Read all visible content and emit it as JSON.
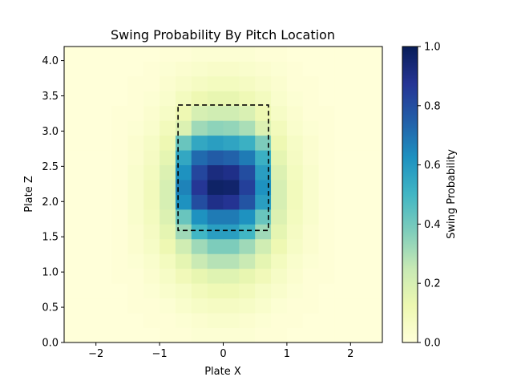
{
  "chart_data": {
    "type": "heatmap",
    "title": "Swing Probability By Pitch Location",
    "xlabel": "Plate X",
    "ylabel": "Plate Z",
    "xlim": [
      -2.5,
      2.5
    ],
    "ylim": [
      0.0,
      4.2
    ],
    "x_ticks": [
      -2,
      -1,
      0,
      1,
      2
    ],
    "x_tick_labels": [
      "−2",
      "−1",
      "0",
      "1",
      "2"
    ],
    "y_ticks": [
      0.0,
      0.5,
      1.0,
      1.5,
      2.0,
      2.5,
      3.0,
      3.5,
      4.0
    ],
    "y_tick_labels": [
      "0.0",
      "0.5",
      "1.0",
      "1.5",
      "2.0",
      "2.5",
      "3.0",
      "3.5",
      "4.0"
    ],
    "colorbar": {
      "label": "Swing Probability",
      "range": [
        0.0,
        1.0
      ],
      "ticks": [
        0.0,
        0.2,
        0.4,
        0.6,
        0.8,
        1.0
      ],
      "tick_labels": [
        "0.0",
        "0.2",
        "0.4",
        "0.6",
        "0.8",
        "1.0"
      ],
      "colormap": "YlGnBu"
    },
    "grid": {
      "x_bins": 20,
      "y_bins": 20,
      "x_range": [
        -2.5,
        2.5
      ],
      "y_range": [
        0.0,
        4.2
      ],
      "rows_from_bottom": [
        [
          0.0,
          0.0,
          0.0,
          0.0,
          0.0,
          0.0,
          0.01,
          0.01,
          0.02,
          0.02,
          0.02,
          0.02,
          0.01,
          0.01,
          0.0,
          0.0,
          0.0,
          0.0,
          0.0,
          0.0
        ],
        [
          0.0,
          0.0,
          0.0,
          0.0,
          0.0,
          0.01,
          0.01,
          0.02,
          0.03,
          0.04,
          0.04,
          0.03,
          0.02,
          0.01,
          0.01,
          0.0,
          0.0,
          0.0,
          0.0,
          0.0
        ],
        [
          0.0,
          0.0,
          0.0,
          0.0,
          0.01,
          0.01,
          0.02,
          0.04,
          0.06,
          0.07,
          0.07,
          0.06,
          0.04,
          0.02,
          0.01,
          0.01,
          0.0,
          0.0,
          0.0,
          0.0
        ],
        [
          0.0,
          0.0,
          0.0,
          0.0,
          0.01,
          0.02,
          0.04,
          0.06,
          0.09,
          0.11,
          0.11,
          0.09,
          0.06,
          0.04,
          0.02,
          0.01,
          0.0,
          0.0,
          0.0,
          0.0
        ],
        [
          0.0,
          0.0,
          0.0,
          0.01,
          0.01,
          0.03,
          0.06,
          0.1,
          0.14,
          0.17,
          0.17,
          0.14,
          0.1,
          0.06,
          0.03,
          0.01,
          0.01,
          0.0,
          0.0,
          0.0
        ],
        [
          0.0,
          0.0,
          0.0,
          0.01,
          0.02,
          0.04,
          0.08,
          0.15,
          0.24,
          0.28,
          0.28,
          0.24,
          0.15,
          0.08,
          0.04,
          0.02,
          0.01,
          0.0,
          0.0,
          0.0
        ],
        [
          0.0,
          0.0,
          0.0,
          0.01,
          0.03,
          0.06,
          0.12,
          0.22,
          0.32,
          0.38,
          0.38,
          0.32,
          0.22,
          0.12,
          0.06,
          0.03,
          0.01,
          0.0,
          0.0,
          0.0
        ],
        [
          0.0,
          0.0,
          0.0,
          0.01,
          0.03,
          0.07,
          0.15,
          0.32,
          0.5,
          0.58,
          0.58,
          0.5,
          0.32,
          0.15,
          0.07,
          0.03,
          0.01,
          0.0,
          0.0,
          0.0
        ],
        [
          0.0,
          0.0,
          0.0,
          0.01,
          0.04,
          0.08,
          0.18,
          0.42,
          0.62,
          0.68,
          0.68,
          0.62,
          0.42,
          0.18,
          0.08,
          0.04,
          0.01,
          0.0,
          0.0,
          0.0
        ],
        [
          0.0,
          0.0,
          0.0,
          0.01,
          0.04,
          0.09,
          0.2,
          0.62,
          0.8,
          0.9,
          0.88,
          0.78,
          0.58,
          0.2,
          0.09,
          0.04,
          0.01,
          0.0,
          0.0,
          0.0
        ],
        [
          0.0,
          0.0,
          0.0,
          0.01,
          0.04,
          0.09,
          0.2,
          0.66,
          0.87,
          0.97,
          0.96,
          0.84,
          0.62,
          0.2,
          0.09,
          0.04,
          0.01,
          0.0,
          0.0,
          0.0
        ],
        [
          0.0,
          0.0,
          0.0,
          0.01,
          0.04,
          0.08,
          0.18,
          0.62,
          0.82,
          0.92,
          0.9,
          0.8,
          0.58,
          0.18,
          0.08,
          0.04,
          0.01,
          0.0,
          0.0,
          0.0
        ],
        [
          0.0,
          0.0,
          0.0,
          0.01,
          0.03,
          0.07,
          0.15,
          0.55,
          0.72,
          0.76,
          0.74,
          0.68,
          0.52,
          0.15,
          0.07,
          0.03,
          0.01,
          0.0,
          0.0,
          0.0
        ],
        [
          0.0,
          0.0,
          0.0,
          0.01,
          0.03,
          0.06,
          0.12,
          0.42,
          0.55,
          0.58,
          0.56,
          0.52,
          0.38,
          0.12,
          0.06,
          0.03,
          0.01,
          0.0,
          0.0,
          0.0
        ],
        [
          0.0,
          0.0,
          0.0,
          0.01,
          0.02,
          0.04,
          0.09,
          0.18,
          0.32,
          0.35,
          0.34,
          0.3,
          0.18,
          0.09,
          0.04,
          0.02,
          0.01,
          0.0,
          0.0,
          0.0
        ],
        [
          0.0,
          0.0,
          0.0,
          0.01,
          0.01,
          0.03,
          0.06,
          0.12,
          0.2,
          0.22,
          0.22,
          0.19,
          0.12,
          0.06,
          0.03,
          0.01,
          0.01,
          0.0,
          0.0,
          0.0
        ],
        [
          0.0,
          0.0,
          0.0,
          0.0,
          0.01,
          0.02,
          0.04,
          0.08,
          0.12,
          0.14,
          0.14,
          0.11,
          0.08,
          0.04,
          0.02,
          0.01,
          0.0,
          0.0,
          0.0,
          0.0
        ],
        [
          0.0,
          0.0,
          0.0,
          0.0,
          0.01,
          0.01,
          0.03,
          0.05,
          0.07,
          0.08,
          0.08,
          0.07,
          0.05,
          0.03,
          0.01,
          0.01,
          0.0,
          0.0,
          0.0,
          0.0
        ],
        [
          0.0,
          0.0,
          0.0,
          0.0,
          0.0,
          0.01,
          0.02,
          0.03,
          0.04,
          0.05,
          0.05,
          0.04,
          0.03,
          0.02,
          0.01,
          0.0,
          0.0,
          0.0,
          0.0,
          0.0
        ],
        [
          0.0,
          0.0,
          0.0,
          0.0,
          0.0,
          0.0,
          0.01,
          0.01,
          0.02,
          0.02,
          0.02,
          0.02,
          0.01,
          0.01,
          0.0,
          0.0,
          0.0,
          0.0,
          0.0,
          0.0
        ]
      ]
    },
    "strike_zone": {
      "x": [
        -0.71,
        0.71
      ],
      "z": [
        1.59,
        3.37
      ],
      "style": "dashed"
    }
  }
}
